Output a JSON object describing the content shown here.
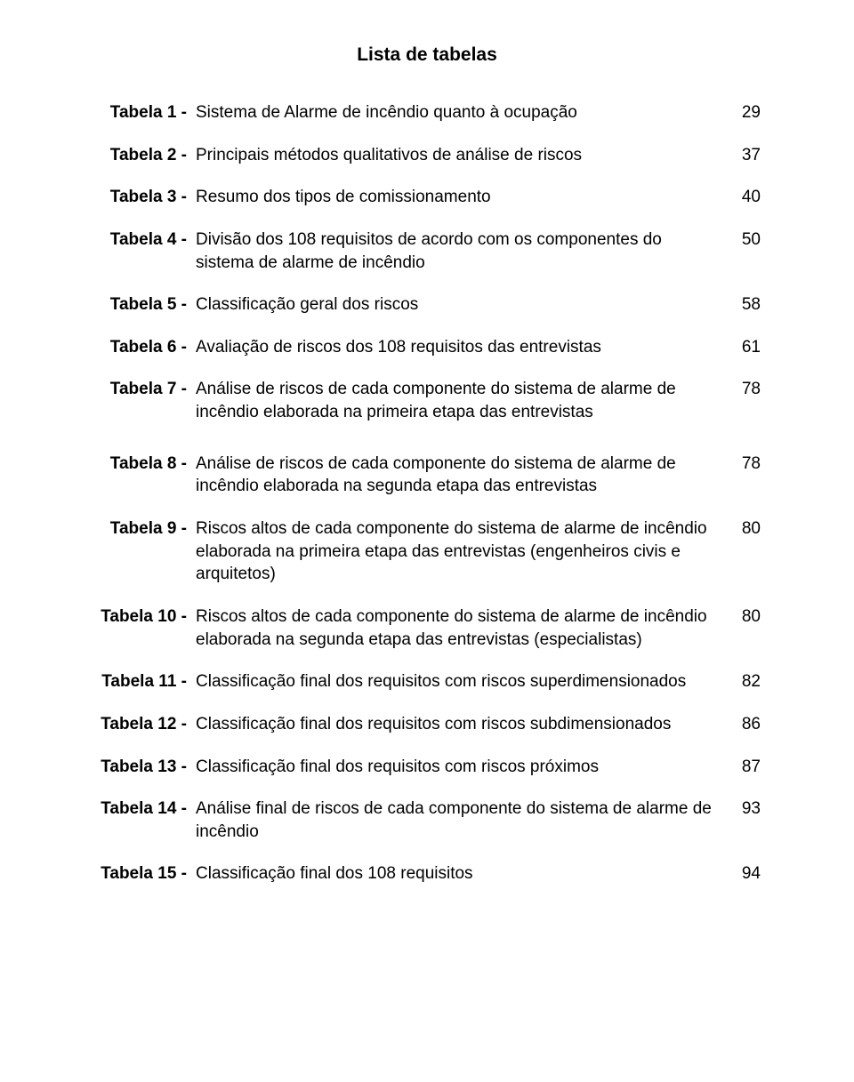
{
  "title": "Lista de tabelas",
  "entries": [
    {
      "label": "Tabela 1 -",
      "desc": "Sistema de Alarme de incêndio quanto à ocupação",
      "page": "29"
    },
    {
      "label": "Tabela 2 -",
      "desc": "Principais métodos qualitativos de análise de riscos",
      "page": "37"
    },
    {
      "label": "Tabela 3 -",
      "desc": "Resumo dos tipos de comissionamento",
      "page": "40"
    },
    {
      "label": "Tabela 4 -",
      "desc": "Divisão dos 108 requisitos de acordo com os componentes do sistema de alarme de incêndio",
      "page": "50"
    },
    {
      "label": "Tabela 5 -",
      "desc": "Classificação geral dos riscos",
      "page": "58"
    },
    {
      "label": "Tabela 6 -",
      "desc": "Avaliação de riscos dos 108 requisitos das entrevistas",
      "page": "61"
    },
    {
      "label": "Tabela 7 -",
      "desc": "Análise de riscos de cada componente do sistema de alarme de incêndio elaborada na primeira etapa das entrevistas",
      "page": "78"
    },
    {
      "label": "Tabela 8 -",
      "desc": "Análise de riscos de cada componente do sistema de alarme de incêndio elaborada na segunda etapa das entrevistas",
      "page": "78"
    },
    {
      "label": "Tabela 9 -",
      "desc": "Riscos altos de cada componente do sistema de alarme de incêndio elaborada na primeira etapa das entrevistas (engenheiros civis e arquitetos)",
      "page": "80"
    },
    {
      "label": "Tabela 10 -",
      "desc": "Riscos altos de cada componente do sistema de alarme de incêndio elaborada na segunda etapa das entrevistas (especialistas)",
      "page": "80"
    },
    {
      "label": "Tabela 11 -",
      "desc": "Classificação final dos requisitos com riscos superdimensionados",
      "page": "82"
    },
    {
      "label": "Tabela 12 -",
      "desc": "Classificação final dos requisitos com riscos subdimensionados",
      "page": "86"
    },
    {
      "label": "Tabela 13 -",
      "desc": "Classificação final dos requisitos com riscos próximos",
      "page": "87"
    },
    {
      "label": "Tabela 14 -",
      "desc": "Análise final de riscos de cada componente do sistema de alarme de incêndio",
      "page": "93"
    },
    {
      "label": "Tabela 15 -",
      "desc": "Classificação final dos 108 requisitos",
      "page": "94"
    }
  ],
  "gap_after_index": 6
}
